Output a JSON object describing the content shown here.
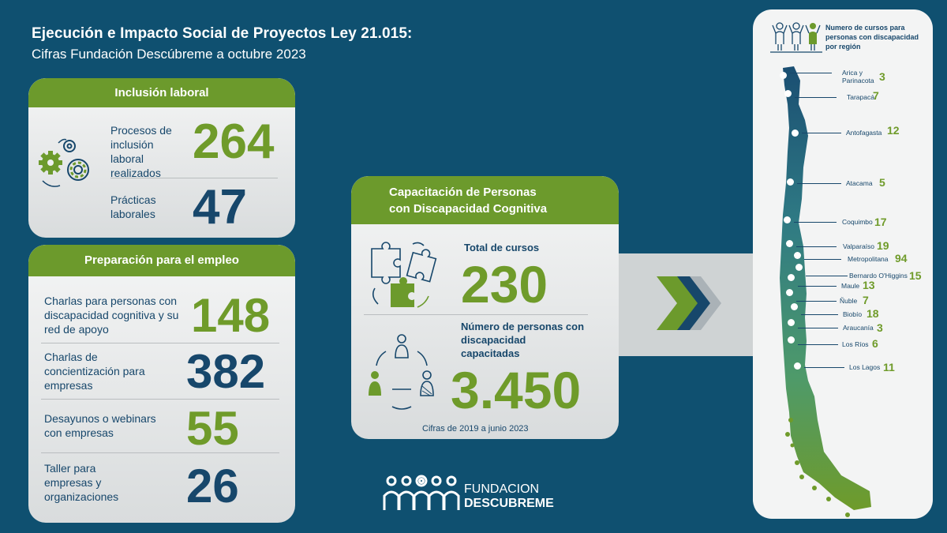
{
  "header": {
    "title": "Ejecución e Impacto Social de Proyectos Ley 21.015:",
    "subtitle": "Cifras Fundación Descúbreme a octubre 2023"
  },
  "inclusion": {
    "heading": "Inclusión laboral",
    "items": [
      {
        "label": "Procesos de inclusión laboral realizados",
        "value": "264"
      },
      {
        "label": "Prácticas laborales",
        "value": "47"
      }
    ]
  },
  "preparacion": {
    "heading": "Preparación para el empleo",
    "items": [
      {
        "label": "Charlas para personas con discapacidad cognitiva y su red de apoyo",
        "value": "148"
      },
      {
        "label": "Charlas de concientización para empresas",
        "value": "382"
      },
      {
        "label": "Desayunos o webinars con empresas",
        "value": "55"
      },
      {
        "label": "Taller para empresas y organizaciones",
        "value": "26"
      }
    ]
  },
  "capacitacion": {
    "heading": "Capacitación de Personas con Discapacidad Cognitiva",
    "total_label": "Total de cursos",
    "total_value": "230",
    "persons_label": "Número de personas con discapacidad capacitadas",
    "persons_value": "3.450",
    "note": "Cifras de 2019 a junio 2023"
  },
  "logo": {
    "line1": "FUNDACION",
    "line2": "DESCUBREME"
  },
  "map": {
    "heading": "Numero de cursos para personas con discapacidad por región",
    "regions": [
      {
        "name": "Arica y Parinacota",
        "value": "3"
      },
      {
        "name": "Tarapacá",
        "value": "7"
      },
      {
        "name": "Antofagasta",
        "value": "12"
      },
      {
        "name": "Atacama",
        "value": "5"
      },
      {
        "name": "Coquimbo",
        "value": "17"
      },
      {
        "name": "Valparaíso",
        "value": "19"
      },
      {
        "name": "Metropolitana",
        "value": "94"
      },
      {
        "name": "Bernardo O'Higgins",
        "value": "15"
      },
      {
        "name": "Maule",
        "value": "13"
      },
      {
        "name": "Ñuble",
        "value": "7"
      },
      {
        "name": "Biobío",
        "value": "18"
      },
      {
        "name": "Araucanía",
        "value": "3"
      },
      {
        "name": "Los Ríos",
        "value": "6"
      },
      {
        "name": "Los Lagos",
        "value": "11"
      }
    ]
  },
  "colors": {
    "background": "#0f5070",
    "green": "#6f9b2a",
    "navy": "#17476b"
  }
}
